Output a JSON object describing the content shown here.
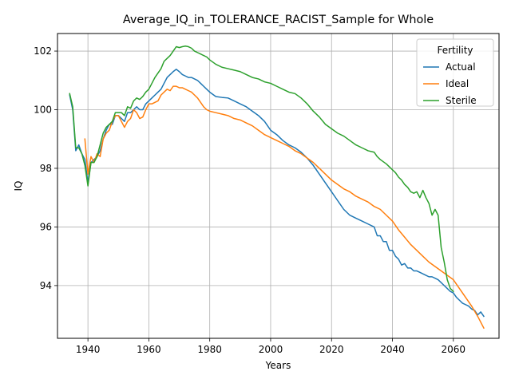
{
  "chart_data": {
    "type": "line",
    "title": "Average_IQ_in_TOLERANCE_RACIST_Sample for Whole",
    "xlabel": "Years",
    "ylabel": "IQ",
    "xlim": [
      1930,
      2075
    ],
    "ylim": [
      92.2,
      102.6
    ],
    "xticks": [
      1940,
      1960,
      1980,
      2000,
      2020,
      2040,
      2060
    ],
    "yticks": [
      94,
      96,
      98,
      100,
      102
    ],
    "grid": true,
    "legend": {
      "title": "Fertility",
      "placement": "top-right"
    },
    "series": [
      {
        "name": "Actual",
        "color": "#1f77b4",
        "points": [
          [
            1934,
            100.5
          ],
          [
            1935,
            100.0
          ],
          [
            1936,
            98.6
          ],
          [
            1937,
            98.8
          ],
          [
            1938,
            98.5
          ],
          [
            1939,
            98.3
          ],
          [
            1940,
            97.5
          ],
          [
            1941,
            98.2
          ],
          [
            1942,
            98.3
          ],
          [
            1943,
            98.4
          ],
          [
            1944,
            98.6
          ],
          [
            1945,
            99.0
          ],
          [
            1946,
            99.3
          ],
          [
            1947,
            99.5
          ],
          [
            1948,
            99.5
          ],
          [
            1949,
            99.8
          ],
          [
            1950,
            99.8
          ],
          [
            1951,
            99.7
          ],
          [
            1952,
            99.6
          ],
          [
            1953,
            99.9
          ],
          [
            1954,
            99.9
          ],
          [
            1955,
            100.0
          ],
          [
            1956,
            100.1
          ],
          [
            1957,
            100.0
          ],
          [
            1958,
            100.0
          ],
          [
            1959,
            100.2
          ],
          [
            1960,
            100.3
          ],
          [
            1961,
            100.4
          ],
          [
            1962,
            100.5
          ],
          [
            1963,
            100.6
          ],
          [
            1964,
            100.7
          ],
          [
            1965,
            100.9
          ],
          [
            1966,
            101.1
          ],
          [
            1967,
            101.2
          ],
          [
            1968,
            101.3
          ],
          [
            1969,
            101.38
          ],
          [
            1970,
            101.3
          ],
          [
            1971,
            101.2
          ],
          [
            1972,
            101.15
          ],
          [
            1973,
            101.1
          ],
          [
            1974,
            101.1
          ],
          [
            1975,
            101.05
          ],
          [
            1976,
            101.0
          ],
          [
            1977,
            100.9
          ],
          [
            1978,
            100.8
          ],
          [
            1979,
            100.7
          ],
          [
            1980,
            100.6
          ],
          [
            1982,
            100.45
          ],
          [
            1984,
            100.42
          ],
          [
            1986,
            100.4
          ],
          [
            1988,
            100.3
          ],
          [
            1990,
            100.2
          ],
          [
            1992,
            100.1
          ],
          [
            1994,
            99.95
          ],
          [
            1996,
            99.8
          ],
          [
            1998,
            99.6
          ],
          [
            2000,
            99.3
          ],
          [
            2002,
            99.15
          ],
          [
            2004,
            98.95
          ],
          [
            2006,
            98.8
          ],
          [
            2008,
            98.7
          ],
          [
            2010,
            98.55
          ],
          [
            2012,
            98.35
          ],
          [
            2014,
            98.1
          ],
          [
            2016,
            97.8
          ],
          [
            2018,
            97.5
          ],
          [
            2020,
            97.2
          ],
          [
            2022,
            96.9
          ],
          [
            2024,
            96.6
          ],
          [
            2026,
            96.4
          ],
          [
            2028,
            96.3
          ],
          [
            2030,
            96.2
          ],
          [
            2032,
            96.1
          ],
          [
            2034,
            96.0
          ],
          [
            2035,
            95.7
          ],
          [
            2036,
            95.7
          ],
          [
            2037,
            95.5
          ],
          [
            2038,
            95.5
          ],
          [
            2039,
            95.2
          ],
          [
            2040,
            95.2
          ],
          [
            2041,
            95.0
          ],
          [
            2042,
            94.9
          ],
          [
            2043,
            94.7
          ],
          [
            2044,
            94.75
          ],
          [
            2045,
            94.6
          ],
          [
            2046,
            94.6
          ],
          [
            2047,
            94.5
          ],
          [
            2048,
            94.5
          ],
          [
            2049,
            94.45
          ],
          [
            2050,
            94.4
          ],
          [
            2051,
            94.35
          ],
          [
            2052,
            94.3
          ],
          [
            2053,
            94.3
          ],
          [
            2054,
            94.25
          ],
          [
            2055,
            94.2
          ],
          [
            2056,
            94.1
          ],
          [
            2057,
            94.0
          ],
          [
            2058,
            93.9
          ],
          [
            2059,
            93.8
          ],
          [
            2060,
            93.75
          ],
          [
            2061,
            93.6
          ],
          [
            2062,
            93.5
          ],
          [
            2063,
            93.4
          ],
          [
            2064,
            93.35
          ],
          [
            2065,
            93.3
          ],
          [
            2066,
            93.2
          ],
          [
            2067,
            93.15
          ],
          [
            2068,
            93.0
          ],
          [
            2069,
            93.1
          ],
          [
            2070,
            92.95
          ]
        ]
      },
      {
        "name": "Ideal",
        "color": "#ff7f0e",
        "points": [
          [
            1939,
            99.0
          ],
          [
            1940,
            97.8
          ],
          [
            1941,
            98.4
          ],
          [
            1942,
            98.2
          ],
          [
            1943,
            98.5
          ],
          [
            1944,
            98.4
          ],
          [
            1945,
            99.0
          ],
          [
            1946,
            99.2
          ],
          [
            1947,
            99.3
          ],
          [
            1948,
            99.6
          ],
          [
            1949,
            99.8
          ],
          [
            1950,
            99.8
          ],
          [
            1951,
            99.6
          ],
          [
            1952,
            99.4
          ],
          [
            1953,
            99.6
          ],
          [
            1954,
            99.7
          ],
          [
            1955,
            100.0
          ],
          [
            1956,
            99.9
          ],
          [
            1957,
            99.7
          ],
          [
            1958,
            99.75
          ],
          [
            1959,
            100.0
          ],
          [
            1960,
            100.2
          ],
          [
            1961,
            100.2
          ],
          [
            1962,
            100.25
          ],
          [
            1963,
            100.3
          ],
          [
            1964,
            100.5
          ],
          [
            1965,
            100.6
          ],
          [
            1966,
            100.7
          ],
          [
            1967,
            100.65
          ],
          [
            1968,
            100.8
          ],
          [
            1969,
            100.8
          ],
          [
            1970,
            100.75
          ],
          [
            1971,
            100.75
          ],
          [
            1972,
            100.7
          ],
          [
            1973,
            100.65
          ],
          [
            1974,
            100.6
          ],
          [
            1975,
            100.5
          ],
          [
            1976,
            100.4
          ],
          [
            1977,
            100.25
          ],
          [
            1978,
            100.1
          ],
          [
            1979,
            100.0
          ],
          [
            1980,
            99.95
          ],
          [
            1982,
            99.9
          ],
          [
            1984,
            99.85
          ],
          [
            1986,
            99.8
          ],
          [
            1988,
            99.7
          ],
          [
            1990,
            99.65
          ],
          [
            1992,
            99.55
          ],
          [
            1994,
            99.45
          ],
          [
            1996,
            99.3
          ],
          [
            1998,
            99.15
          ],
          [
            2000,
            99.05
          ],
          [
            2002,
            98.95
          ],
          [
            2004,
            98.85
          ],
          [
            2006,
            98.75
          ],
          [
            2008,
            98.6
          ],
          [
            2010,
            98.5
          ],
          [
            2012,
            98.35
          ],
          [
            2014,
            98.2
          ],
          [
            2016,
            98.0
          ],
          [
            2018,
            97.8
          ],
          [
            2020,
            97.6
          ],
          [
            2022,
            97.45
          ],
          [
            2024,
            97.3
          ],
          [
            2026,
            97.2
          ],
          [
            2028,
            97.05
          ],
          [
            2030,
            96.95
          ],
          [
            2032,
            96.85
          ],
          [
            2034,
            96.7
          ],
          [
            2036,
            96.6
          ],
          [
            2038,
            96.4
          ],
          [
            2040,
            96.2
          ],
          [
            2042,
            95.9
          ],
          [
            2044,
            95.65
          ],
          [
            2046,
            95.4
          ],
          [
            2048,
            95.2
          ],
          [
            2050,
            95.0
          ],
          [
            2052,
            94.8
          ],
          [
            2054,
            94.65
          ],
          [
            2056,
            94.5
          ],
          [
            2058,
            94.35
          ],
          [
            2060,
            94.2
          ],
          [
            2062,
            93.9
          ],
          [
            2064,
            93.6
          ],
          [
            2066,
            93.3
          ],
          [
            2068,
            92.95
          ],
          [
            2070,
            92.55
          ]
        ]
      },
      {
        "name": "Sterile",
        "color": "#2ca02c",
        "points": [
          [
            1934,
            100.55
          ],
          [
            1935,
            100.1
          ],
          [
            1936,
            98.7
          ],
          [
            1937,
            98.7
          ],
          [
            1938,
            98.5
          ],
          [
            1939,
            98.1
          ],
          [
            1940,
            97.4
          ],
          [
            1941,
            98.2
          ],
          [
            1942,
            98.2
          ],
          [
            1943,
            98.4
          ],
          [
            1944,
            98.8
          ],
          [
            1945,
            99.2
          ],
          [
            1946,
            99.4
          ],
          [
            1947,
            99.5
          ],
          [
            1948,
            99.6
          ],
          [
            1949,
            99.9
          ],
          [
            1950,
            99.9
          ],
          [
            1951,
            99.9
          ],
          [
            1952,
            99.8
          ],
          [
            1953,
            100.1
          ],
          [
            1954,
            100.05
          ],
          [
            1955,
            100.3
          ],
          [
            1956,
            100.4
          ],
          [
            1957,
            100.35
          ],
          [
            1958,
            100.45
          ],
          [
            1959,
            100.6
          ],
          [
            1960,
            100.7
          ],
          [
            1961,
            100.9
          ],
          [
            1962,
            101.1
          ],
          [
            1963,
            101.25
          ],
          [
            1964,
            101.4
          ],
          [
            1965,
            101.65
          ],
          [
            1966,
            101.75
          ],
          [
            1967,
            101.85
          ],
          [
            1968,
            102.0
          ],
          [
            1969,
            102.15
          ],
          [
            1970,
            102.12
          ],
          [
            1971,
            102.15
          ],
          [
            1972,
            102.17
          ],
          [
            1973,
            102.15
          ],
          [
            1974,
            102.1
          ],
          [
            1975,
            102.0
          ],
          [
            1976,
            101.95
          ],
          [
            1977,
            101.9
          ],
          [
            1978,
            101.85
          ],
          [
            1979,
            101.8
          ],
          [
            1980,
            101.7
          ],
          [
            1982,
            101.55
          ],
          [
            1984,
            101.45
          ],
          [
            1986,
            101.4
          ],
          [
            1988,
            101.35
          ],
          [
            1990,
            101.3
          ],
          [
            1992,
            101.2
          ],
          [
            1994,
            101.1
          ],
          [
            1996,
            101.05
          ],
          [
            1998,
            100.95
          ],
          [
            2000,
            100.9
          ],
          [
            2002,
            100.8
          ],
          [
            2004,
            100.7
          ],
          [
            2006,
            100.6
          ],
          [
            2008,
            100.55
          ],
          [
            2010,
            100.4
          ],
          [
            2012,
            100.2
          ],
          [
            2014,
            99.95
          ],
          [
            2016,
            99.75
          ],
          [
            2018,
            99.5
          ],
          [
            2020,
            99.35
          ],
          [
            2022,
            99.2
          ],
          [
            2024,
            99.1
          ],
          [
            2026,
            98.95
          ],
          [
            2028,
            98.8
          ],
          [
            2030,
            98.7
          ],
          [
            2032,
            98.6
          ],
          [
            2034,
            98.55
          ],
          [
            2035,
            98.4
          ],
          [
            2036,
            98.3
          ],
          [
            2038,
            98.15
          ],
          [
            2040,
            97.95
          ],
          [
            2041,
            97.85
          ],
          [
            2042,
            97.7
          ],
          [
            2043,
            97.6
          ],
          [
            2044,
            97.45
          ],
          [
            2045,
            97.35
          ],
          [
            2046,
            97.2
          ],
          [
            2047,
            97.15
          ],
          [
            2048,
            97.2
          ],
          [
            2049,
            97.0
          ],
          [
            2050,
            97.25
          ],
          [
            2051,
            97.0
          ],
          [
            2052,
            96.8
          ],
          [
            2053,
            96.4
          ],
          [
            2054,
            96.6
          ],
          [
            2055,
            96.4
          ],
          [
            2056,
            95.3
          ],
          [
            2057,
            94.8
          ],
          [
            2058,
            94.2
          ],
          [
            2059,
            93.9
          ],
          [
            2060,
            93.8
          ]
        ]
      }
    ]
  }
}
